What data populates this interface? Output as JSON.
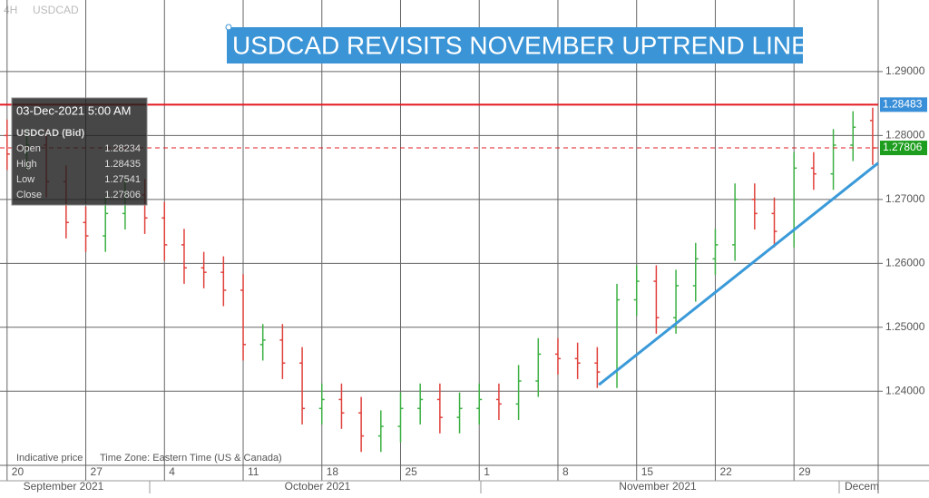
{
  "chart_data": {
    "type": "ohlc",
    "title": "USDCAD REVISITS NOVEMBER UPTREND LINE",
    "interval": "4H",
    "symbol": "USDCAD",
    "x": [
      0,
      0.25,
      0.5,
      0.75,
      1,
      1.25,
      1.5,
      1.75,
      2,
      2.25,
      2.5,
      2.75,
      3,
      3.25,
      3.5,
      3.75,
      4,
      4.25,
      4.5,
      4.75,
      5,
      5.25,
      5.5,
      5.75,
      6,
      6.25,
      6.5,
      6.75,
      7,
      7.25,
      7.5,
      7.75,
      8,
      8.25,
      8.5,
      8.75,
      9,
      9.25,
      9.5,
      9.75,
      10,
      10.25,
      10.5,
      10.75,
      11
    ],
    "open": [
      1.28,
      1.2771,
      1.2785,
      1.2728,
      1.2664,
      1.2643,
      1.2678,
      1.2707,
      1.2671,
      1.2629,
      1.2593,
      1.2586,
      1.2558,
      1.2473,
      1.248,
      1.2444,
      1.2373,
      1.2387,
      1.2366,
      1.233,
      1.2345,
      1.2373,
      1.2387,
      1.2359,
      1.2373,
      1.2387,
      1.238,
      1.2416,
      1.2458,
      1.2451,
      1.2444,
      1.243,
      1.2543,
      1.2572,
      1.2515,
      1.2565,
      1.2607,
      1.2629,
      1.27,
      1.2678,
      1.265,
      1.2749,
      1.274,
      1.2785,
      1.28234
    ],
    "high": [
      1.2825,
      1.281,
      1.281,
      1.2753,
      1.2689,
      1.2703,
      1.2732,
      1.2732,
      1.2696,
      1.2654,
      1.2618,
      1.2611,
      1.2583,
      1.2505,
      1.2505,
      1.2469,
      1.2412,
      1.2412,
      1.2391,
      1.237,
      1.2398,
      1.2412,
      1.2412,
      1.2398,
      1.2412,
      1.2412,
      1.2441,
      1.2483,
      1.2483,
      1.2476,
      1.2469,
      1.2568,
      1.2597,
      1.2597,
      1.259,
      1.2632,
      1.2654,
      1.2725,
      1.2725,
      1.2703,
      1.2774,
      1.2774,
      1.281,
      1.2838,
      1.28435
    ],
    "low": [
      1.2746,
      1.2746,
      1.2703,
      1.2639,
      1.2618,
      1.2618,
      1.2653,
      1.2646,
      1.2604,
      1.2568,
      1.2561,
      1.2533,
      1.2448,
      1.2448,
      1.2419,
      1.2348,
      1.2348,
      1.2341,
      1.2305,
      1.2305,
      1.232,
      1.2348,
      1.2334,
      1.2334,
      1.2348,
      1.2355,
      1.2355,
      1.2391,
      1.2426,
      1.2419,
      1.2405,
      1.2405,
      1.2518,
      1.249,
      1.249,
      1.254,
      1.2582,
      1.2604,
      1.2653,
      1.2625,
      1.2625,
      1.2715,
      1.2715,
      1.276,
      1.27541
    ],
    "close": [
      1.2771,
      1.2785,
      1.2728,
      1.2664,
      1.2643,
      1.2678,
      1.2707,
      1.2671,
      1.2629,
      1.2593,
      1.2586,
      1.2558,
      1.2473,
      1.248,
      1.2444,
      1.2373,
      1.2387,
      1.2366,
      1.233,
      1.2345,
      1.2373,
      1.2387,
      1.2359,
      1.2373,
      1.2387,
      1.238,
      1.2416,
      1.2458,
      1.2451,
      1.2444,
      1.243,
      1.2543,
      1.2572,
      1.2515,
      1.2565,
      1.2607,
      1.2629,
      1.27,
      1.2678,
      1.265,
      1.2749,
      1.274,
      1.2785,
      1.2813,
      1.27806
    ],
    "up_color": "#3cb043",
    "down_color": "#e0403a",
    "xlim": [
      -0.09,
      11.07
    ],
    "ylim": [
      1.2284,
      1.3012
    ],
    "xticks": [
      {
        "value": 0,
        "label": "20"
      },
      {
        "value": 1,
        "label": "27"
      },
      {
        "value": 2,
        "label": "4"
      },
      {
        "value": 3,
        "label": "11"
      },
      {
        "value": 4,
        "label": "18"
      },
      {
        "value": 5,
        "label": "25"
      },
      {
        "value": 6,
        "label": "1"
      },
      {
        "value": 7,
        "label": "8"
      },
      {
        "value": 8,
        "label": "15"
      },
      {
        "value": 9,
        "label": "22"
      },
      {
        "value": 10,
        "label": "29"
      }
    ],
    "yticks": [
      {
        "value": 1.24,
        "label": "1.24000"
      },
      {
        "value": 1.25,
        "label": "1.25000"
      },
      {
        "value": 1.26,
        "label": "1.26000"
      },
      {
        "value": 1.27,
        "label": "1.27000"
      },
      {
        "value": 1.28,
        "label": "1.28000"
      },
      {
        "value": 1.29,
        "label": "1.29000"
      }
    ],
    "grid": true,
    "months": [
      "September 2021",
      "October 2021",
      "November 2021",
      "Decem"
    ],
    "price_lines": [
      {
        "value": 1.28483,
        "color": "#e31b23",
        "dashed": false,
        "tag_color": "#3a8fd9"
      },
      {
        "value": 1.27806,
        "color": "#e31b23",
        "dashed": true,
        "tag_color": "#1e9e1e"
      }
    ],
    "trend_line": {
      "x": [
        7.52,
        11.07
      ],
      "y": [
        1.241,
        1.2757
      ],
      "color": "#3a9ad9"
    },
    "info_box": {
      "date": "03-Dec-2021 5:00 AM",
      "instrument": "USDCAD (Bid)",
      "rows": [
        {
          "label": "Open",
          "value": 1.28234
        },
        {
          "label": "High",
          "value": 1.28435
        },
        {
          "label": "Low",
          "value": 1.27541
        },
        {
          "label": "Close",
          "value": 1.27806
        }
      ]
    },
    "footer": [
      "Indicative price",
      "Time Zone: Eastern Time (US & Canada)"
    ]
  }
}
